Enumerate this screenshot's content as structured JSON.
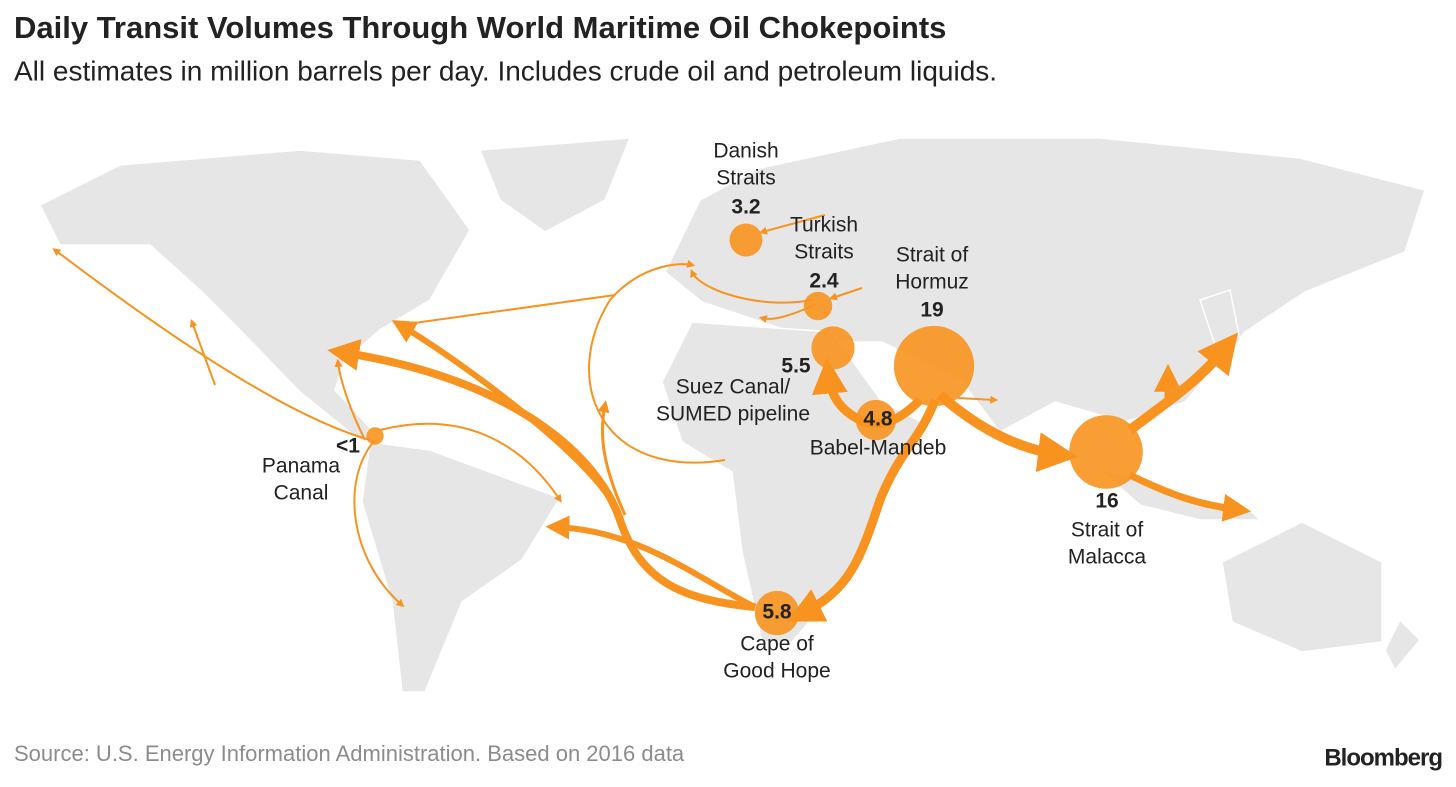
{
  "header": {
    "title": "Daily Transit Volumes Through World Maritime Oil Chokepoints",
    "subtitle": "All estimates in million barrels per day. Includes crude oil and petroleum liquids."
  },
  "chokepoints": [
    {
      "name_lines": [
        "Danish",
        "Straits"
      ],
      "value": 3.2
    },
    {
      "name_lines": [
        "Turkish",
        "Straits"
      ],
      "value": 2.4
    },
    {
      "name_lines": [
        "Strait of",
        "Hormuz"
      ],
      "value": 19
    },
    {
      "name_lines": [
        "Suez Canal/",
        "SUMED pipeline"
      ],
      "value": 5.5
    },
    {
      "name_lines": [
        "Babel-Mandeb"
      ],
      "value": 4.8
    },
    {
      "name_lines": [
        "Strait of",
        "Malacca"
      ],
      "value": 16
    },
    {
      "name_lines": [
        "Cape of",
        "Good Hope"
      ],
      "value": 5.8
    },
    {
      "name_lines": [
        "Panama",
        "Canal"
      ],
      "value": 0.9,
      "value_label": "<1"
    }
  ],
  "color": "#f7931e",
  "footer": {
    "source": "Source: U.S. Energy Information Administration. Based on 2016 data",
    "brand": "Bloomberg"
  }
}
